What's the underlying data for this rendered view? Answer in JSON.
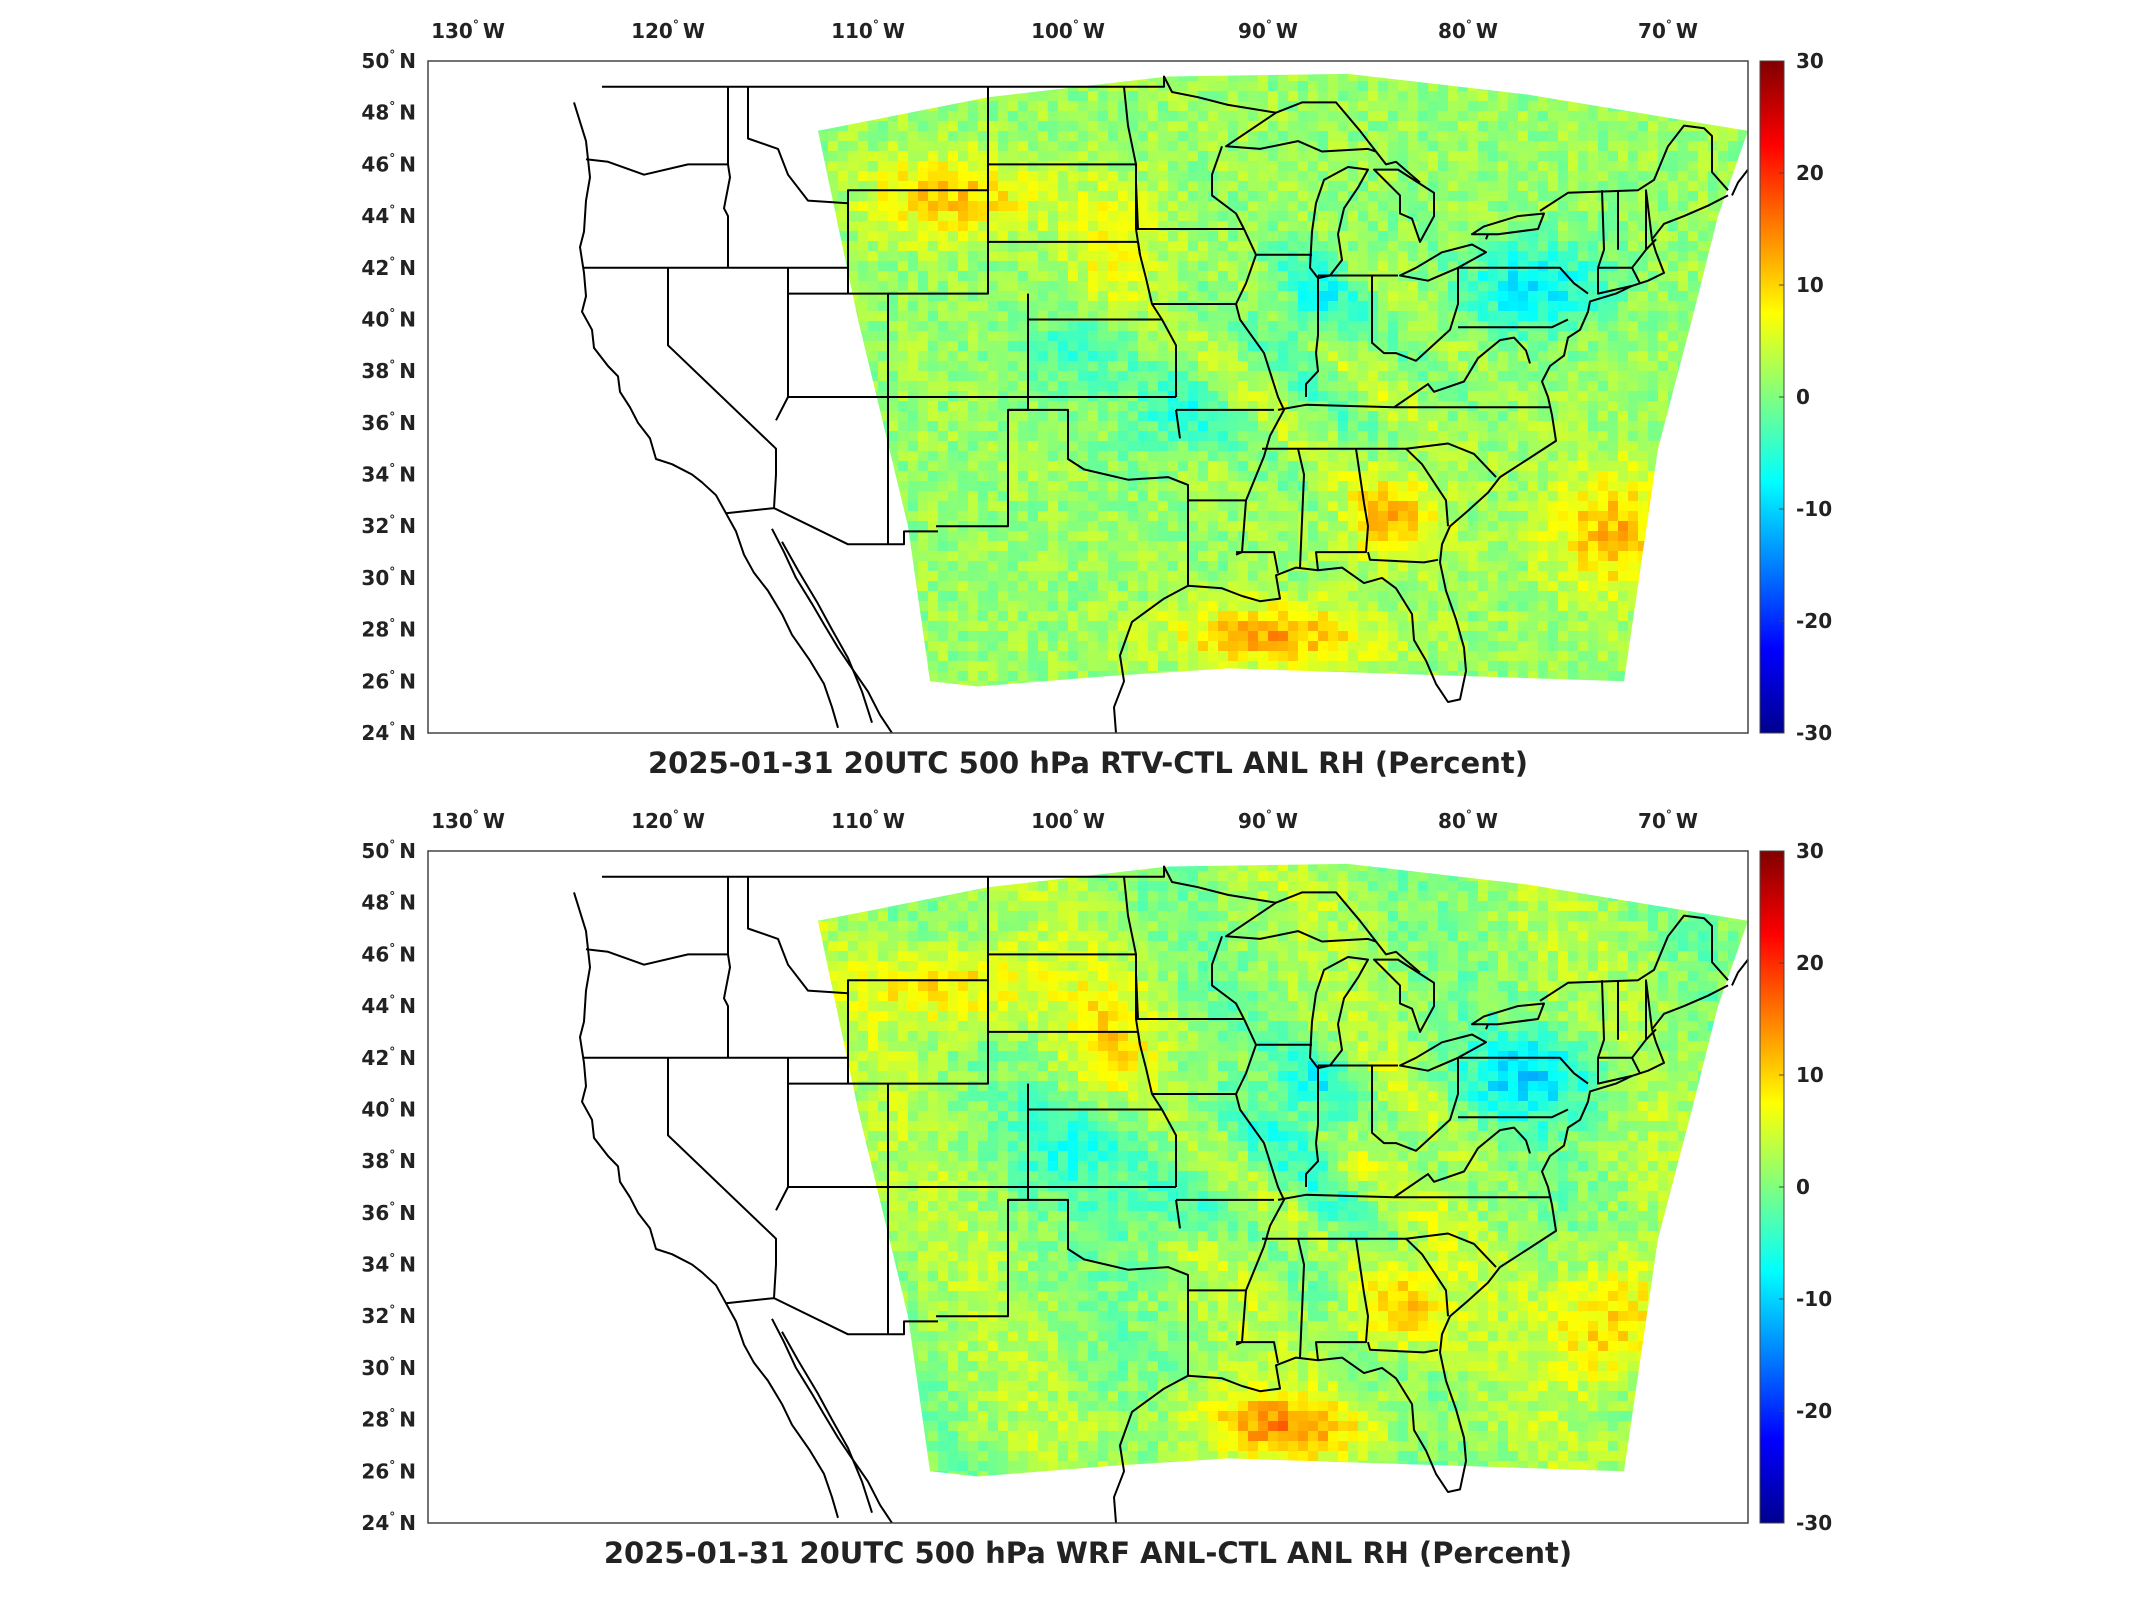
{
  "maps": [
    {
      "title": "2025-01-31 20UTC 500 hPa RTV-CTL ANL RH (Percent)",
      "lon_labels": [
        "130",
        "120",
        "110",
        "100",
        "90",
        "80",
        "70"
      ],
      "lat_labels": [
        "50",
        "48",
        "46",
        "44",
        "42",
        "40",
        "38",
        "36",
        "34",
        "32",
        "30",
        "28",
        "26",
        "24"
      ],
      "colorbar_ticks": [
        "30",
        "20",
        "10",
        "0",
        "-10",
        "-20",
        "-30"
      ]
    },
    {
      "title": "2025-01-31 20UTC 500 hPa WRF ANL-CTL ANL RH (Percent)",
      "lon_labels": [
        "130",
        "120",
        "110",
        "100",
        "90",
        "80",
        "70"
      ],
      "lat_labels": [
        "50",
        "48",
        "46",
        "44",
        "42",
        "40",
        "38",
        "36",
        "34",
        "32",
        "30",
        "28",
        "26",
        "24"
      ],
      "colorbar_ticks": [
        "30",
        "20",
        "10",
        "0",
        "-10",
        "-20",
        "-30"
      ]
    }
  ],
  "lon_suffix": "W",
  "lat_suffix": "N",
  "degree_symbol": "°",
  "colorbar": {
    "min": -30,
    "max": 30,
    "colors": [
      "#00008f",
      "#0000ff",
      "#0080ff",
      "#00ffff",
      "#80ff80",
      "#ffff00",
      "#ff8000",
      "#ff0000",
      "#800000"
    ]
  },
  "map_extent": {
    "lon_min": -132,
    "lon_max": -66,
    "lat_min": 24,
    "lat_max": 50
  }
}
